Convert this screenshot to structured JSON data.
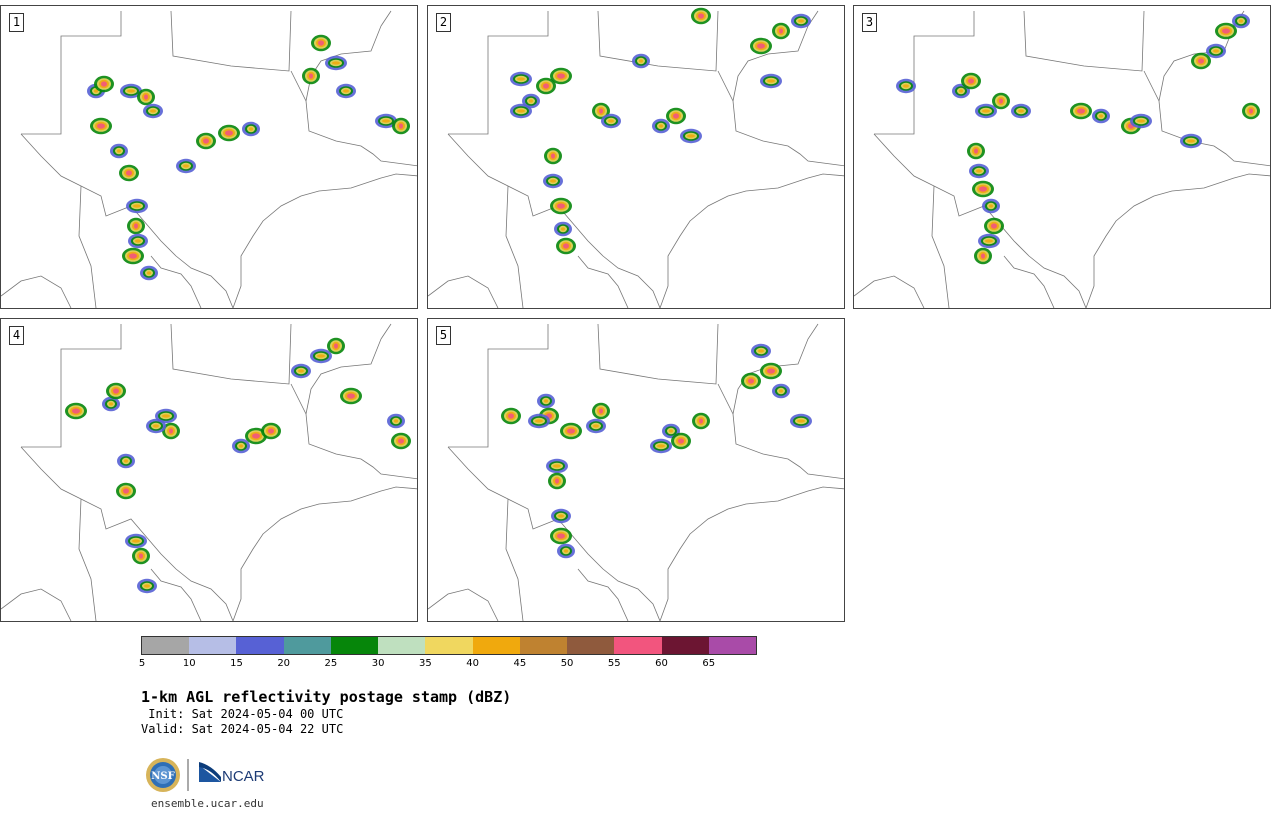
{
  "panels": [
    {
      "id": "1",
      "storms": [
        [
          95,
          90
        ],
        [
          103,
          83
        ],
        [
          130,
          90
        ],
        [
          145,
          96
        ],
        [
          152,
          110
        ],
        [
          100,
          125
        ],
        [
          118,
          150
        ],
        [
          128,
          172
        ],
        [
          136,
          205
        ],
        [
          135,
          225
        ],
        [
          137,
          240
        ],
        [
          132,
          255
        ],
        [
          148,
          272
        ],
        [
          320,
          42
        ],
        [
          335,
          62
        ],
        [
          310,
          75
        ],
        [
          345,
          90
        ],
        [
          228,
          132
        ],
        [
          250,
          128
        ],
        [
          205,
          140
        ],
        [
          385,
          120
        ],
        [
          400,
          125
        ],
        [
          185,
          165
        ]
      ]
    },
    {
      "id": "2",
      "storms": [
        [
          530,
          100
        ],
        [
          545,
          85
        ],
        [
          520,
          110
        ],
        [
          600,
          110
        ],
        [
          610,
          120
        ],
        [
          560,
          75
        ],
        [
          660,
          125
        ],
        [
          675,
          115
        ],
        [
          690,
          135
        ],
        [
          552,
          155
        ],
        [
          552,
          180
        ],
        [
          560,
          205
        ],
        [
          562,
          228
        ],
        [
          565,
          245
        ],
        [
          520,
          78
        ],
        [
          780,
          30
        ],
        [
          800,
          20
        ],
        [
          760,
          45
        ],
        [
          640,
          60
        ],
        [
          700,
          15
        ],
        [
          770,
          80
        ]
      ]
    },
    {
      "id": "3",
      "storms": [
        [
          960,
          90
        ],
        [
          970,
          80
        ],
        [
          985,
          110
        ],
        [
          1000,
          100
        ],
        [
          1020,
          110
        ],
        [
          1080,
          110
        ],
        [
          1100,
          115
        ],
        [
          1130,
          125
        ],
        [
          1140,
          120
        ],
        [
          975,
          150
        ],
        [
          978,
          170
        ],
        [
          982,
          188
        ],
        [
          990,
          205
        ],
        [
          993,
          225
        ],
        [
          988,
          240
        ],
        [
          982,
          255
        ],
        [
          1215,
          50
        ],
        [
          1225,
          30
        ],
        [
          1240,
          20
        ],
        [
          1200,
          60
        ],
        [
          1190,
          140
        ],
        [
          1250,
          110
        ],
        [
          905,
          85
        ]
      ]
    },
    {
      "id": "4",
      "storms": [
        [
          110,
          403
        ],
        [
          115,
          390
        ],
        [
          165,
          415
        ],
        [
          170,
          430
        ],
        [
          155,
          425
        ],
        [
          255,
          435
        ],
        [
          240,
          445
        ],
        [
          270,
          430
        ],
        [
          320,
          355
        ],
        [
          335,
          345
        ],
        [
          300,
          370
        ],
        [
          350,
          395
        ],
        [
          125,
          460
        ],
        [
          125,
          490
        ],
        [
          135,
          540
        ],
        [
          140,
          555
        ],
        [
          146,
          585
        ],
        [
          75,
          410
        ],
        [
          395,
          420
        ],
        [
          400,
          440
        ]
      ]
    },
    {
      "id": "5",
      "storms": [
        [
          545,
          400
        ],
        [
          548,
          415
        ],
        [
          538,
          420
        ],
        [
          600,
          410
        ],
        [
          595,
          425
        ],
        [
          570,
          430
        ],
        [
          670,
          430
        ],
        [
          680,
          440
        ],
        [
          660,
          445
        ],
        [
          700,
          420
        ],
        [
          760,
          350
        ],
        [
          770,
          370
        ],
        [
          780,
          390
        ],
        [
          750,
          380
        ],
        [
          556,
          465
        ],
        [
          556,
          480
        ],
        [
          560,
          515
        ],
        [
          560,
          535
        ],
        [
          565,
          550
        ],
        [
          510,
          415
        ],
        [
          800,
          420
        ]
      ]
    }
  ],
  "colorbar": {
    "colors": [
      "#a6a6a6",
      "#b6bee6",
      "#5761d5",
      "#4f9a9d",
      "#06860a",
      "#bfe0bf",
      "#f0d75f",
      "#f0a90d",
      "#bf8230",
      "#8f5a3d",
      "#f2557e",
      "#6c1532",
      "#a94ba8"
    ],
    "ticks": [
      "5",
      "10",
      "15",
      "20",
      "25",
      "30",
      "35",
      "40",
      "45",
      "50",
      "55",
      "60",
      "65"
    ]
  },
  "title": "1-km AGL reflectivity postage stamp (dBZ)",
  "init_line": " Init: Sat 2024-05-04 00 UTC",
  "valid_line": "Valid: Sat 2024-05-04 22 UTC",
  "logos": {
    "nsf": "NSF",
    "ncar": "NCAR"
  },
  "footer_url": "ensemble.ucar.edu"
}
